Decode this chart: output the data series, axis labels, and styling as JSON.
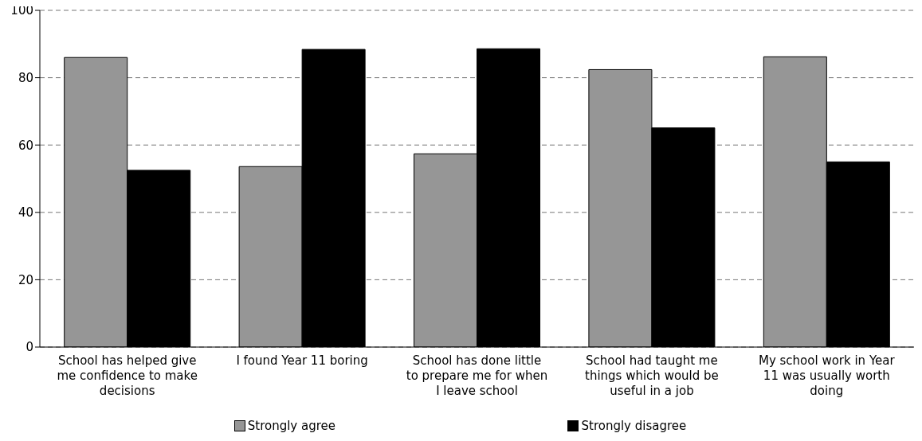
{
  "chart_data": {
    "type": "bar",
    "categories": [
      "School has helped give me confidence to make decisions",
      "I found Year 11 boring",
      "School has done little to prepare me for when I leave school",
      "School had taught me things which would be useful in a job",
      "My school work in Year 11 was usually worth doing"
    ],
    "series": [
      {
        "name": "Strongly agree",
        "color": "#969696",
        "values": [
          86,
          53.6,
          57.4,
          82.4,
          86.2
        ]
      },
      {
        "name": "Strongly disagree",
        "color": "#000000",
        "values": [
          52.5,
          88.4,
          88.6,
          65.1,
          55
        ]
      }
    ],
    "ylim": [
      0,
      100
    ],
    "yticks": [
      0,
      20,
      40,
      60,
      80,
      100
    ],
    "grid": "y",
    "legend": "bottom"
  }
}
